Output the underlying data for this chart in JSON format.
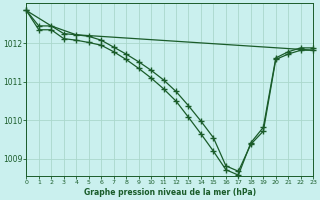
{
  "title": "Graphe pression niveau de la mer (hPa)",
  "bg": "#caf0ee",
  "grid_color": "#aad8cc",
  "lc": "#1a5c2a",
  "xlim": [
    0,
    23
  ],
  "ylim": [
    1008.55,
    1013.05
  ],
  "yticks": [
    1009,
    1010,
    1011,
    1012
  ],
  "xticks": [
    0,
    1,
    2,
    3,
    4,
    5,
    6,
    7,
    8,
    9,
    10,
    11,
    12,
    13,
    14,
    15,
    16,
    17,
    18,
    19,
    20,
    21,
    22,
    23
  ],
  "line1_x": [
    0,
    1,
    2,
    3,
    4,
    5,
    6,
    7,
    8,
    9,
    10,
    11,
    12,
    13,
    14,
    15,
    16,
    17,
    18,
    19,
    20,
    21,
    22,
    23
  ],
  "line1_y": [
    1012.85,
    1012.45,
    1012.45,
    1012.25,
    1012.22,
    1012.18,
    1012.08,
    1011.9,
    1011.72,
    1011.52,
    1011.3,
    1011.05,
    1010.75,
    1010.38,
    1009.98,
    1009.55,
    1008.82,
    1008.68,
    1009.38,
    1009.72,
    1011.58,
    1011.72,
    1011.82,
    1011.82
  ],
  "line2_x": [
    0,
    1,
    2,
    3,
    4,
    5,
    6,
    7,
    8,
    9,
    10,
    11,
    12,
    13,
    14,
    15,
    16,
    17,
    18,
    19,
    20,
    21,
    22,
    23
  ],
  "line2_y": [
    1012.85,
    1012.35,
    1012.35,
    1012.12,
    1012.08,
    1012.02,
    1011.95,
    1011.78,
    1011.58,
    1011.35,
    1011.1,
    1010.82,
    1010.5,
    1010.08,
    1009.65,
    1009.2,
    1008.72,
    1008.58,
    1009.42,
    1009.82,
    1011.62,
    1011.78,
    1011.88,
    1011.88
  ],
  "line3_x": [
    0,
    2,
    4,
    23
  ],
  "line3_y": [
    1012.85,
    1012.45,
    1012.22,
    1011.82
  ]
}
